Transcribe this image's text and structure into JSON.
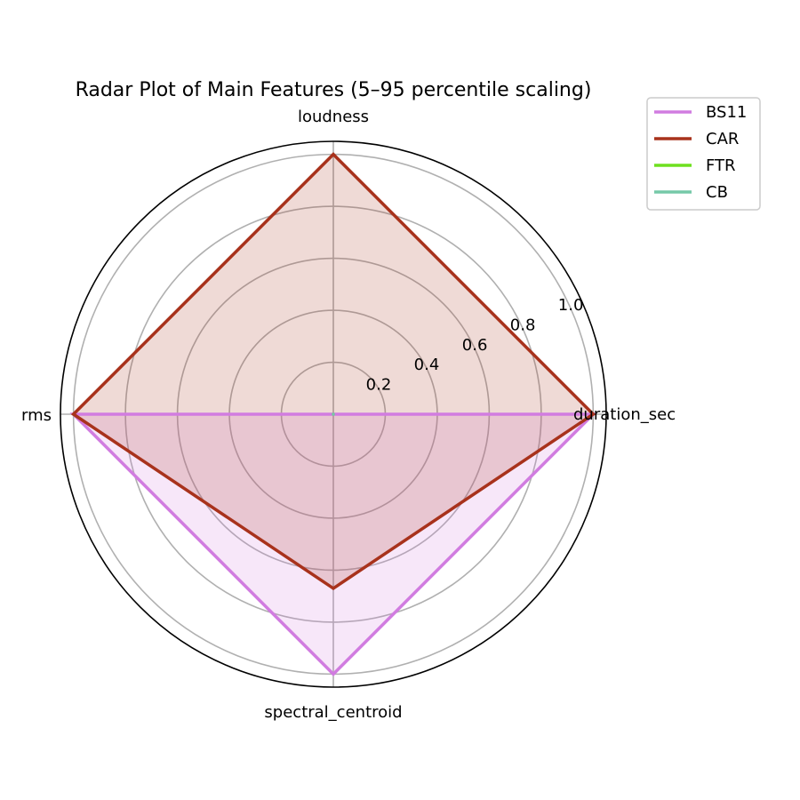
{
  "chart_data": {
    "type": "radar",
    "title": "Radar Plot of Main Features (5–95 percentile scaling)",
    "axes": [
      "duration_sec",
      "loudness",
      "rms",
      "spectral_centroid"
    ],
    "rlim": [
      0,
      1.05
    ],
    "rticks": [
      0.2,
      0.4,
      0.6,
      0.8,
      1.0
    ],
    "rtick_labels": [
      "0.2",
      "0.4",
      "0.6",
      "0.8",
      "1.0"
    ],
    "grid": true,
    "legend_position": "upper-right outside",
    "series": [
      {
        "name": "BS11",
        "color": "#d17ce0",
        "values": [
          1.0,
          0.0,
          1.0,
          1.0
        ],
        "fill": true
      },
      {
        "name": "CAR",
        "color": "#a8321c",
        "values": [
          1.0,
          1.0,
          1.0,
          0.67
        ],
        "fill": true
      },
      {
        "name": "FTR",
        "color": "#6ee01f",
        "values": [
          0.0,
          0.0,
          0.0,
          0.0
        ],
        "fill": true
      },
      {
        "name": "CB",
        "color": "#76c9a8",
        "values": [
          0.0,
          0.0,
          0.0,
          0.0
        ],
        "fill": true
      }
    ]
  }
}
